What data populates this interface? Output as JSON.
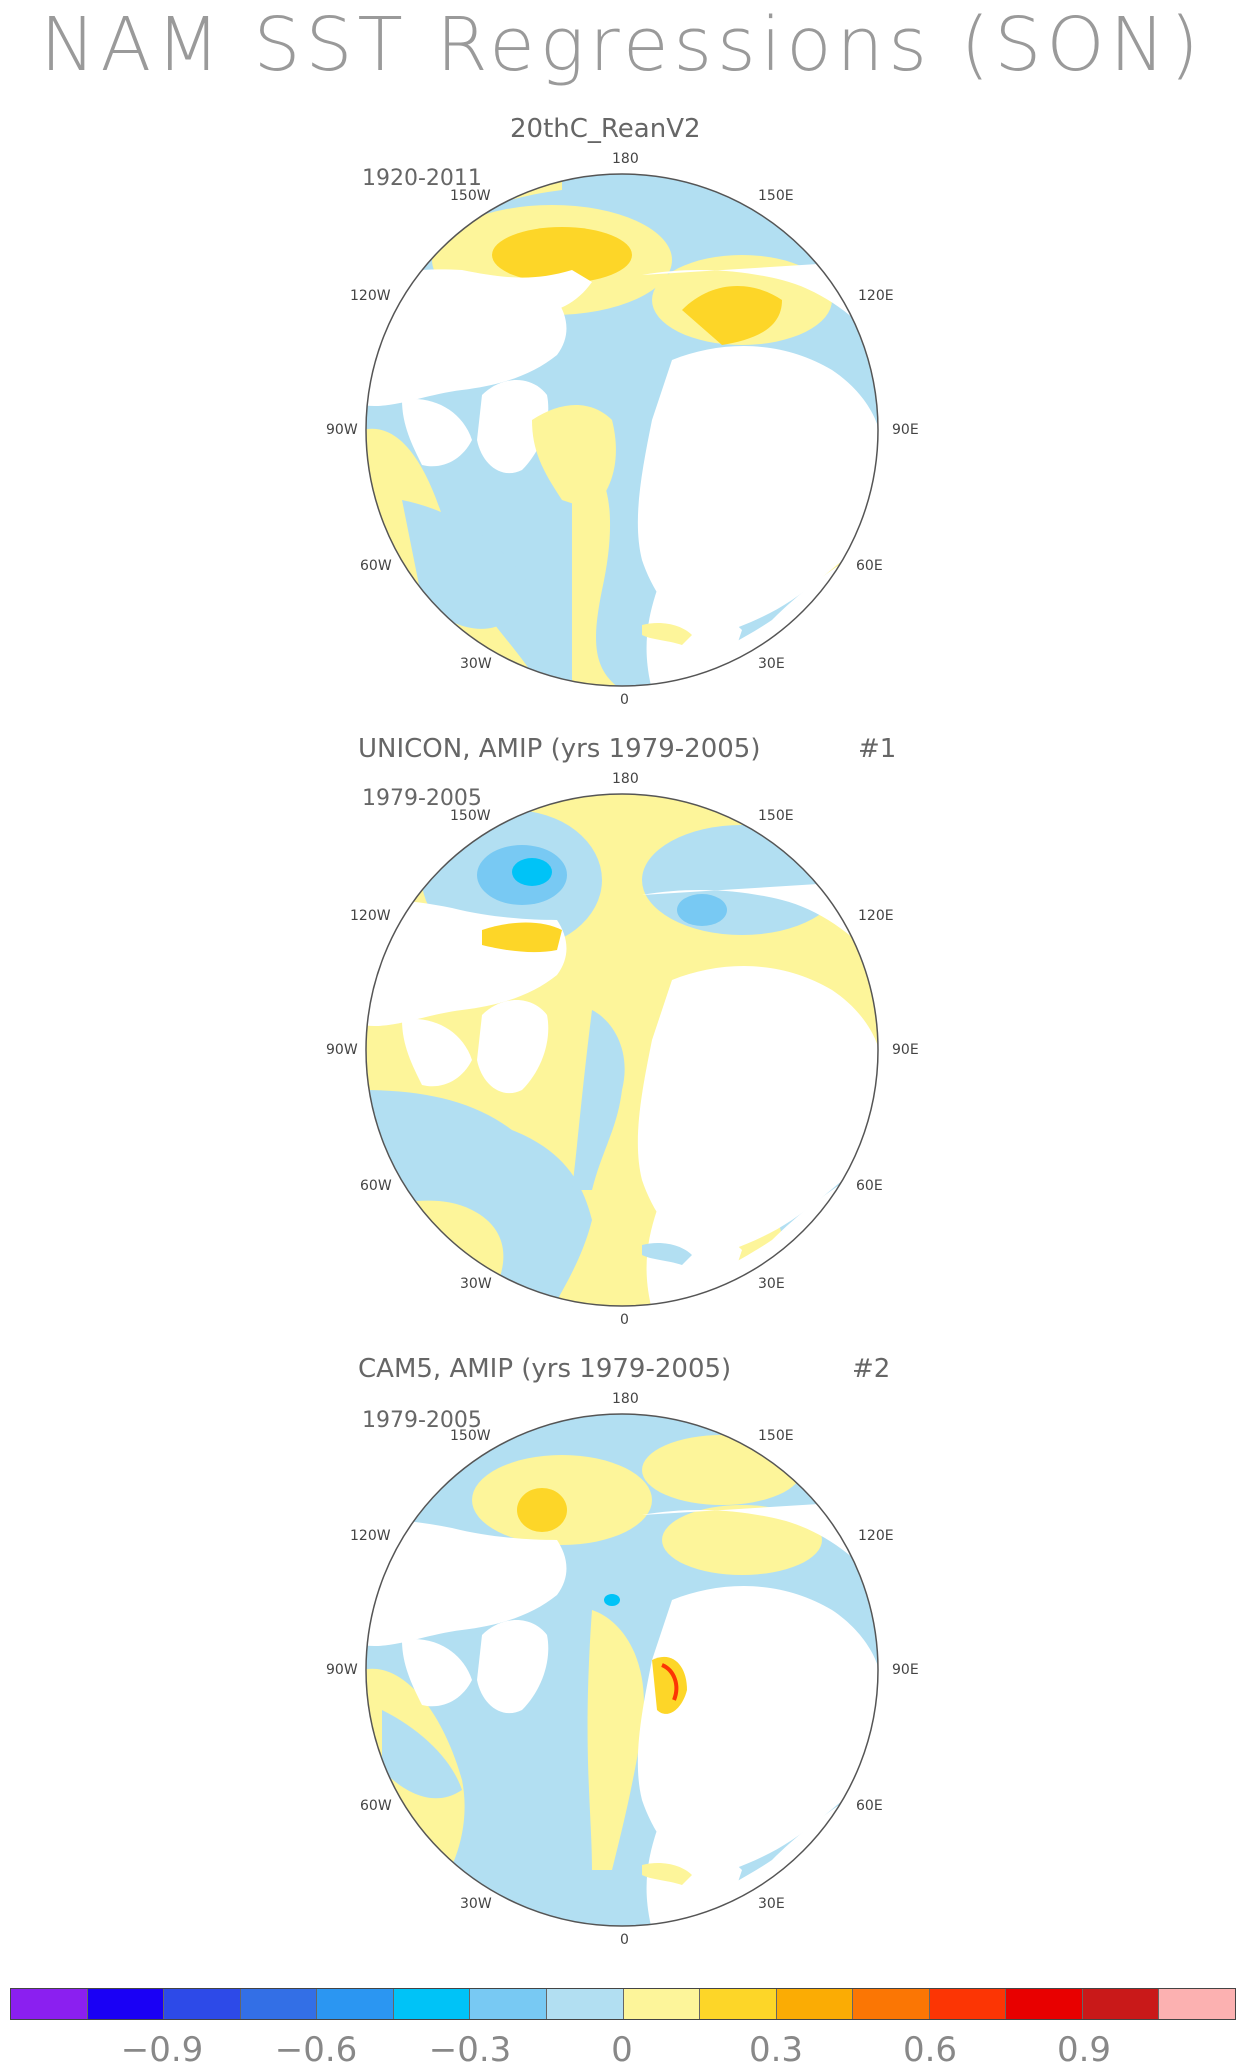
{
  "title": "NAM SST Regressions (SON)",
  "panels": [
    {
      "title": "20thC_ReanV2",
      "period": "1920-2011",
      "number": ""
    },
    {
      "title": "UNICON, AMIP (yrs 1979-2005)",
      "period": "1979-2005",
      "number": "#1"
    },
    {
      "title": "CAM5, AMIP (yrs 1979-2005)",
      "period": "1979-2005",
      "number": "#2"
    }
  ],
  "lon_labels": {
    "top": "180",
    "bottom": "0",
    "ul": "150W",
    "ur": "150E",
    "l1": "120W",
    "r1": "120E",
    "l2": "90W",
    "r2": "90E",
    "l3": "60W",
    "r3": "60E",
    "ll": "30W",
    "lr": "30E"
  },
  "colorbar": {
    "colors": [
      "#8b1ff0",
      "#1a00f5",
      "#2d4ae8",
      "#336fe6",
      "#2b96f2",
      "#00c3f7",
      "#78c9f3",
      "#b2dff2",
      "#fdf59a",
      "#fdd628",
      "#fbac04",
      "#fb7604",
      "#fc3504",
      "#e80000",
      "#c91919",
      "#fcb1b1"
    ],
    "labels": [
      "−0.9",
      "−0.6",
      "−0.3",
      "0",
      "0.3",
      "0.6",
      "0.9"
    ]
  }
}
